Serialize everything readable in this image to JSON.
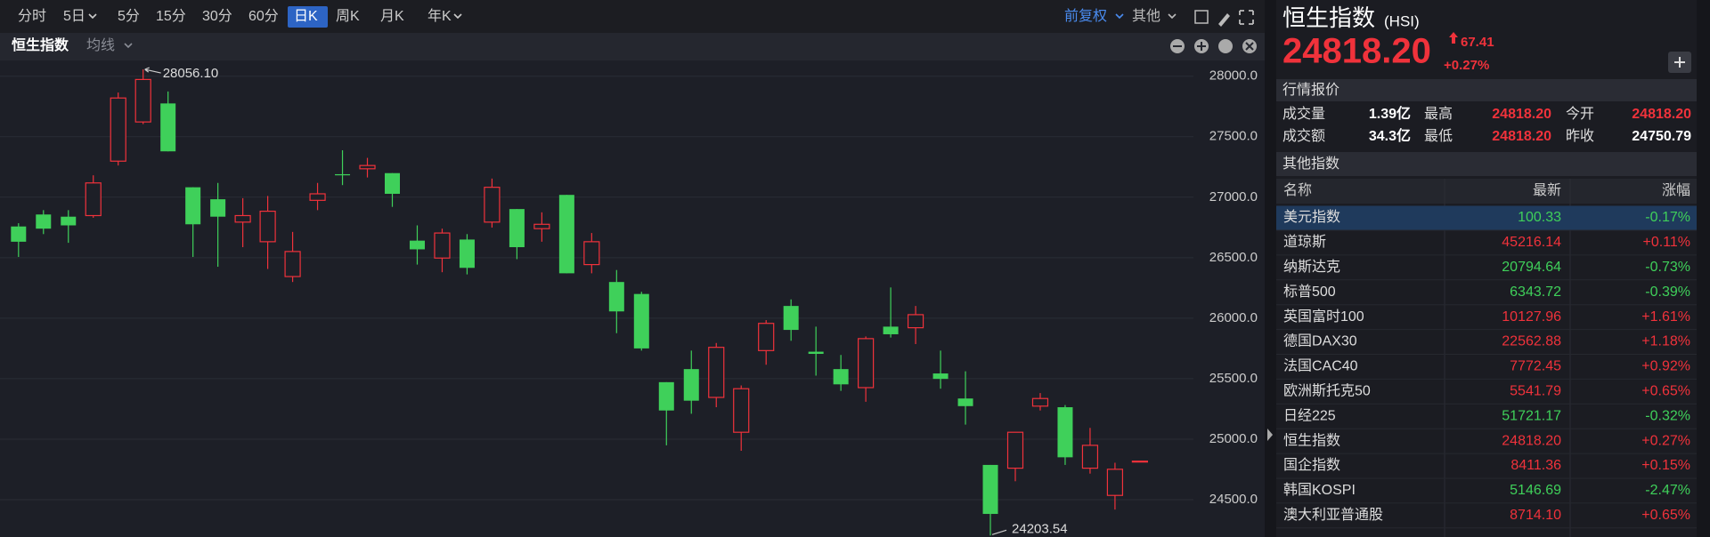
{
  "toolbar": {
    "periods": [
      "分时",
      "5日",
      "5分",
      "15分",
      "30分",
      "60分",
      "日K",
      "周K",
      "月K",
      "年K"
    ],
    "active_period": 6,
    "adjust": "前复权",
    "other": "其他"
  },
  "chart_data": {
    "type": "candlestick",
    "title": "恒生指数",
    "indicator": "均线",
    "ylim": [
      24200,
      28120
    ],
    "yticks": [
      {
        "value": 28000,
        "label": "28000.0"
      },
      {
        "value": 27500,
        "label": "27500.0"
      },
      {
        "value": 27000,
        "label": "27000.0"
      },
      {
        "value": 26500,
        "label": "26500.0"
      },
      {
        "value": 26000,
        "label": "26000.0"
      },
      {
        "value": 25500,
        "label": "25500.0"
      },
      {
        "value": 25000,
        "label": "25000.0"
      },
      {
        "value": 24500,
        "label": "24500.0"
      }
    ],
    "grid": true,
    "up_color": "#f0323b",
    "down_color": "#3fd05a",
    "candles": [
      {
        "open": 26758,
        "high": 26785,
        "low": 26506,
        "close": 26632
      },
      {
        "open": 26857,
        "high": 26893,
        "low": 26695,
        "close": 26740
      },
      {
        "open": 26839,
        "high": 26893,
        "low": 26623,
        "close": 26767
      },
      {
        "open": 26848,
        "high": 27181,
        "low": 26830,
        "close": 27118
      },
      {
        "open": 27298,
        "high": 27865,
        "low": 27262,
        "close": 27820
      },
      {
        "open": 27622,
        "high": 28056.1,
        "low": 27604,
        "close": 27973
      },
      {
        "open": 27775,
        "high": 27874,
        "low": 27379,
        "close": 27379
      },
      {
        "open": 27082,
        "high": 27082,
        "low": 26506,
        "close": 26776
      },
      {
        "open": 26983,
        "high": 27118,
        "low": 26425,
        "close": 26839
      },
      {
        "open": 26794,
        "high": 26992,
        "low": 26587,
        "close": 26848
      },
      {
        "open": 26632,
        "high": 27010,
        "low": 26407,
        "close": 26884
      },
      {
        "open": 26344,
        "high": 26713,
        "low": 26299,
        "close": 26551
      },
      {
        "open": 26974,
        "high": 27118,
        "low": 26893,
        "close": 27028
      },
      {
        "open": 27190,
        "high": 27388,
        "low": 27100,
        "close": 27181
      },
      {
        "open": 27235,
        "high": 27325,
        "low": 27163,
        "close": 27262
      },
      {
        "open": 27199,
        "high": 27199,
        "low": 26920,
        "close": 27028
      },
      {
        "open": 26641,
        "high": 26767,
        "low": 26443,
        "close": 26569
      },
      {
        "open": 26497,
        "high": 26740,
        "low": 26380,
        "close": 26704
      },
      {
        "open": 26650,
        "high": 26695,
        "low": 26362,
        "close": 26416
      },
      {
        "open": 26794,
        "high": 27154,
        "low": 26749,
        "close": 27082
      },
      {
        "open": 26902,
        "high": 26902,
        "low": 26488,
        "close": 26587
      },
      {
        "open": 26740,
        "high": 26875,
        "low": 26632,
        "close": 26776
      },
      {
        "open": 27019,
        "high": 27019,
        "low": 26371,
        "close": 26371
      },
      {
        "open": 26443,
        "high": 26704,
        "low": 26371,
        "close": 26632
      },
      {
        "open": 26299,
        "high": 26398,
        "low": 25876,
        "close": 26056
      },
      {
        "open": 26200,
        "high": 26218,
        "low": 25732,
        "close": 25750
      },
      {
        "open": 25471,
        "high": 25471,
        "low": 24949,
        "close": 25237
      },
      {
        "open": 25579,
        "high": 25732,
        "low": 25210,
        "close": 25318
      },
      {
        "open": 25345,
        "high": 25795,
        "low": 25264,
        "close": 25759
      },
      {
        "open": 25057,
        "high": 25444,
        "low": 24904,
        "close": 25417
      },
      {
        "open": 25732,
        "high": 25984,
        "low": 25615,
        "close": 25957
      },
      {
        "open": 26101,
        "high": 26155,
        "low": 25813,
        "close": 25903
      },
      {
        "open": 25723,
        "high": 25930,
        "low": 25525,
        "close": 25705
      },
      {
        "open": 25579,
        "high": 25696,
        "low": 25399,
        "close": 25453
      },
      {
        "open": 25426,
        "high": 25849,
        "low": 25309,
        "close": 25831
      },
      {
        "open": 25930,
        "high": 26254,
        "low": 25840,
        "close": 25867
      },
      {
        "open": 25921,
        "high": 26101,
        "low": 25786,
        "close": 26029
      },
      {
        "open": 25543,
        "high": 25732,
        "low": 25417,
        "close": 25498
      },
      {
        "open": 25336,
        "high": 25561,
        "low": 25120,
        "close": 25273
      },
      {
        "open": 24787,
        "high": 24787,
        "low": 24203.54,
        "close": 24382
      },
      {
        "open": 24760,
        "high": 25057,
        "low": 24652,
        "close": 25057
      },
      {
        "open": 25273,
        "high": 25381,
        "low": 25237,
        "close": 25336
      },
      {
        "open": 25264,
        "high": 25282,
        "low": 24787,
        "close": 24850
      },
      {
        "open": 24760,
        "high": 25093,
        "low": 24715,
        "close": 24949
      },
      {
        "open": 24535,
        "high": 24805,
        "low": 24418,
        "close": 24751
      },
      {
        "open": 24818.2,
        "high": 24818.2,
        "low": 24818.2,
        "close": 24818.2
      }
    ],
    "max_label": {
      "value": 28056.1,
      "label": "28056.10"
    },
    "min_label": 24203.54
  },
  "quote": {
    "name": "恒生指数",
    "code": "(HSI)",
    "price": "24818.20",
    "change": "67.41",
    "change_pct": "+0.27%",
    "section": "行情报价",
    "stats": [
      [
        "成交量",
        "1.39亿",
        "最高",
        "24818.20",
        "今开",
        "24818.20"
      ],
      [
        "成交额",
        "34.3亿",
        "最低",
        "24818.20",
        "昨收",
        "24750.79"
      ]
    ]
  },
  "other_indices": {
    "title": "其他指数",
    "columns": [
      "名称",
      "最新",
      "涨幅"
    ],
    "selected": 0,
    "rows": [
      [
        "美元指数",
        "100.33",
        "-0.17%"
      ],
      [
        "道琼斯",
        "45216.14",
        "+0.11%"
      ],
      [
        "纳斯达克",
        "20794.64",
        "-0.73%"
      ],
      [
        "标普500",
        "6343.72",
        "-0.39%"
      ],
      [
        "英国富时100",
        "10127.96",
        "+1.61%"
      ],
      [
        "德国DAX30",
        "22562.88",
        "+1.18%"
      ],
      [
        "法国CAC40",
        "7772.45",
        "+0.92%"
      ],
      [
        "欧洲斯托克50",
        "5541.79",
        "+0.65%"
      ],
      [
        "日经225",
        "51721.17",
        "-0.32%"
      ],
      [
        "恒生指数",
        "24818.20",
        "+0.27%"
      ],
      [
        "国企指数",
        "8411.36",
        "+0.15%"
      ],
      [
        "韩国KOSPI",
        "5146.69",
        "-2.47%"
      ],
      [
        "澳大利亚普通股",
        "8714.10",
        "+0.65%"
      ]
    ]
  }
}
